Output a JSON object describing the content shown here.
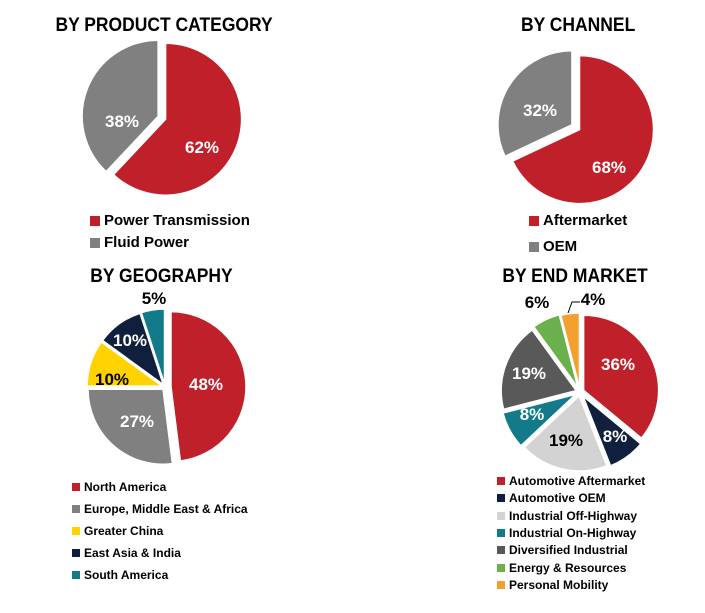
{
  "chart_data": [
    {
      "type": "pie",
      "title": "BY PRODUCT CATEGORY",
      "categories": [
        "Power Transmission",
        "Fluid Power"
      ],
      "values": [
        62,
        38
      ],
      "labels": [
        "62%",
        "38%"
      ],
      "colors": [
        "#C0202A",
        "#808080"
      ],
      "label_colors": [
        "#ffffff",
        "#ffffff"
      ],
      "legend_position": "bottom"
    },
    {
      "type": "pie",
      "title": "BY CHANNEL",
      "categories": [
        "Aftermarket",
        "OEM"
      ],
      "values": [
        68,
        32
      ],
      "labels": [
        "68%",
        "32%"
      ],
      "colors": [
        "#C0202A",
        "#808080"
      ],
      "label_colors": [
        "#ffffff",
        "#ffffff"
      ],
      "legend_position": "bottom"
    },
    {
      "type": "pie",
      "title": "BY GEOGRAPHY",
      "categories": [
        "North America",
        "Europe, Middle East & Africa",
        "Greater China",
        "East Asia & India",
        "South America"
      ],
      "values": [
        48,
        27,
        10,
        10,
        5
      ],
      "labels": [
        "48%",
        "27%",
        "10%",
        "10%",
        "5%"
      ],
      "colors": [
        "#C0202A",
        "#808080",
        "#FFD200",
        "#0F1F3D",
        "#137A8A"
      ],
      "label_colors": [
        "#ffffff",
        "#ffffff",
        "#000000",
        "#ffffff",
        "#000000"
      ],
      "legend_position": "bottom"
    },
    {
      "type": "pie",
      "title": "BY END MARKET",
      "categories": [
        "Automotive Aftermarket",
        "Automotive OEM",
        "Industrial Off-Highway",
        "Industrial On-Highway",
        "Diversified Industrial",
        "Energy & Resources",
        "Personal Mobility"
      ],
      "values": [
        36,
        8,
        19,
        8,
        19,
        6,
        4
      ],
      "labels": [
        "36%",
        "8%",
        "19%",
        "8%",
        "19%",
        "6%",
        "4%"
      ],
      "colors": [
        "#C0202A",
        "#0F1F3D",
        "#D3D3D3",
        "#137A8A",
        "#595959",
        "#6AB04C",
        "#F4A030"
      ],
      "label_colors": [
        "#ffffff",
        "#ffffff",
        "#000000",
        "#ffffff",
        "#ffffff",
        "#000000",
        "#000000"
      ],
      "legend_position": "bottom"
    }
  ]
}
